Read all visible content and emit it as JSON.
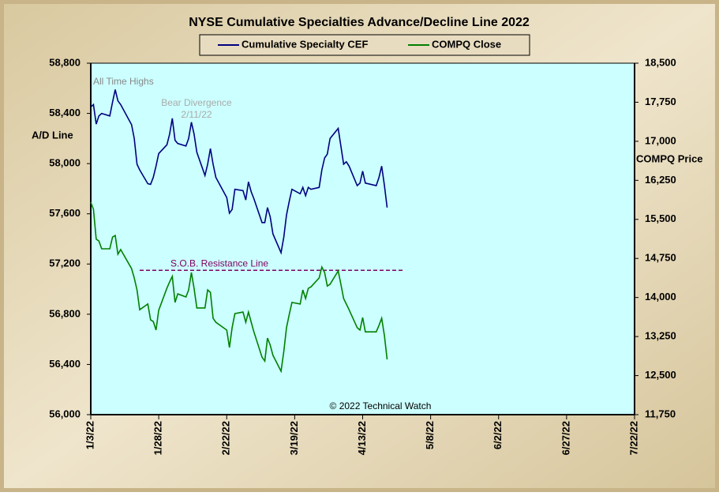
{
  "chart_data": {
    "type": "line",
    "title": "NYSE Cumulative Specialties Advance/Decline Line 2022",
    "y_label": "A/D Line",
    "y2_label": "COMPQ Price",
    "x": [
      "1/3/22",
      "1/4/22",
      "1/5/22",
      "1/6/22",
      "1/7/22",
      "1/10/22",
      "1/11/22",
      "1/12/22",
      "1/13/22",
      "1/14/22",
      "1/18/22",
      "1/19/22",
      "1/20/22",
      "1/21/22",
      "1/24/22",
      "1/25/22",
      "1/26/22",
      "1/27/22",
      "1/28/22",
      "1/31/22",
      "2/1/22",
      "2/2/22",
      "2/3/22",
      "2/4/22",
      "2/7/22",
      "2/8/22",
      "2/9/22",
      "2/10/22",
      "2/11/22",
      "2/14/22",
      "2/15/22",
      "2/16/22",
      "2/17/22",
      "2/18/22",
      "2/22/22",
      "2/23/22",
      "2/24/22",
      "2/25/22",
      "2/28/22",
      "3/1/22",
      "3/2/22",
      "3/3/22",
      "3/4/22",
      "3/7/22",
      "3/8/22",
      "3/9/22",
      "3/10/22",
      "3/11/22",
      "3/14/22",
      "3/15/22",
      "3/16/22",
      "3/17/22",
      "3/18/22",
      "3/21/22",
      "3/22/22",
      "3/23/22",
      "3/24/22",
      "3/25/22",
      "3/28/22",
      "3/29/22",
      "3/30/22",
      "3/31/22",
      "4/1/22",
      "4/4/22",
      "4/5/22",
      "4/6/22",
      "4/7/22",
      "4/8/22",
      "4/11/22",
      "4/12/22",
      "4/13/22",
      "4/14/22",
      "4/18/22",
      "4/19/22",
      "4/20/22",
      "4/21/22",
      "4/22/22"
    ],
    "series": [
      {
        "name": "Cumulative Specialty CEF",
        "color": "#000080",
        "axis": "y",
        "values": [
          58450,
          58470,
          58315,
          58380,
          58400,
          58380,
          58490,
          58590,
          58500,
          58470,
          58310,
          58200,
          57995,
          57950,
          57840,
          57835,
          57890,
          57980,
          58080,
          58150,
          58235,
          58360,
          58185,
          58160,
          58140,
          58200,
          58330,
          58235,
          58090,
          57905,
          57995,
          58120,
          57995,
          57890,
          57730,
          57605,
          57635,
          57795,
          57785,
          57710,
          57855,
          57775,
          57720,
          57530,
          57530,
          57650,
          57575,
          57440,
          57290,
          57415,
          57590,
          57700,
          57795,
          57760,
          57810,
          57745,
          57810,
          57795,
          57810,
          57950,
          58045,
          58075,
          58200,
          58280,
          58140,
          57995,
          58015,
          57980,
          57825,
          57845,
          57940,
          57845,
          57825,
          57890,
          57980,
          57825,
          57650
        ]
      },
      {
        "name": "COMPQ Close",
        "color": "#008000",
        "axis": "y2",
        "values": [
          15830,
          15695,
          15120,
          15085,
          14935,
          14935,
          15160,
          15190,
          14830,
          14920,
          14555,
          14375,
          14145,
          13765,
          13875,
          13570,
          13540,
          13375,
          13755,
          14180,
          14300,
          14405,
          13905,
          14070,
          14010,
          14145,
          14480,
          14175,
          13800,
          13800,
          14145,
          14100,
          13600,
          13525,
          13375,
          13040,
          13420,
          13690,
          13720,
          13525,
          13720,
          13525,
          13340,
          12855,
          12780,
          13220,
          13085,
          12890,
          12585,
          12965,
          13420,
          13675,
          13905,
          13875,
          14145,
          13980,
          14175,
          14205,
          14375,
          14585,
          14480,
          14220,
          14255,
          14510,
          14255,
          13980,
          13875,
          13765,
          13420,
          13375,
          13615,
          13340,
          13340,
          13465,
          13600,
          13265,
          12810
        ]
      }
    ],
    "xlim": [
      "1/3/22",
      "7/22/22"
    ],
    "xticks": [
      "1/3/22",
      "1/28/22",
      "2/22/22",
      "3/19/22",
      "4/13/22",
      "5/8/22",
      "6/2/22",
      "6/27/22",
      "7/22/22"
    ],
    "ylim": [
      56000,
      58800
    ],
    "yticks": [
      {
        "value": 56000,
        "label": "56,000"
      },
      {
        "value": 56400,
        "label": "56,400"
      },
      {
        "value": 56800,
        "label": "56,800"
      },
      {
        "value": 57200,
        "label": "57,200"
      },
      {
        "value": 57600,
        "label": "57,600"
      },
      {
        "value": 58000,
        "label": "58,000"
      },
      {
        "value": 58400,
        "label": "58,400"
      },
      {
        "value": 58800,
        "label": "58,800"
      }
    ],
    "y2lim": [
      11750,
      18500
    ],
    "y2ticks": [
      {
        "value": 11750,
        "label": "11,750"
      },
      {
        "value": 12500,
        "label": "12,500"
      },
      {
        "value": 13250,
        "label": "13,250"
      },
      {
        "value": 14000,
        "label": "14,000"
      },
      {
        "value": 14750,
        "label": "14,750"
      },
      {
        "value": 15500,
        "label": "15,500"
      },
      {
        "value": 16250,
        "label": "16,250"
      },
      {
        "value": 17000,
        "label": "17,000"
      },
      {
        "value": 17750,
        "label": "17,750"
      },
      {
        "value": 18500,
        "label": "18,500"
      }
    ],
    "reference_line": {
      "label": "S.O.B. Resistance Line",
      "value": 57150,
      "color": "#800060"
    },
    "annotations": [
      {
        "text": "All Time Highs"
      },
      {
        "text": "Bear Divergence"
      },
      {
        "text": "2/11/22"
      },
      {
        "text": "© 2022 Technical Watch"
      }
    ],
    "grid": false,
    "plot_background": "#ccffff"
  }
}
